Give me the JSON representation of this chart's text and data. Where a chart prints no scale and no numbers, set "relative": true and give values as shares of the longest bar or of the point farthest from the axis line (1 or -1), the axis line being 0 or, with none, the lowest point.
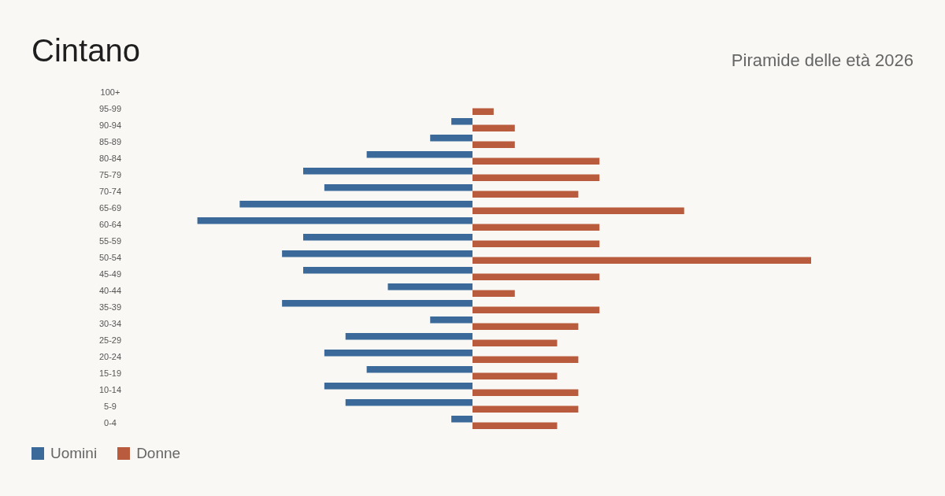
{
  "chart_data": {
    "type": "bar",
    "orientation": "horizontal",
    "relative": true,
    "title": "Cintano",
    "subtitle": "Piramide delle età 2026",
    "categories": [
      "100+",
      "95-99",
      "90-94",
      "85-89",
      "80-84",
      "75-79",
      "70-74",
      "65-69",
      "60-64",
      "55-59",
      "50-54",
      "45-49",
      "40-44",
      "35-39",
      "30-34",
      "25-29",
      "20-24",
      "15-19",
      "10-14",
      "5-9",
      "0-4"
    ],
    "series": [
      {
        "name": "Uomini",
        "color": "#3b6a9a",
        "values": [
          0,
          0,
          -0.0625,
          -0.125,
          -0.3125,
          -0.5,
          -0.4375,
          -0.6875,
          -0.8125,
          -0.5,
          -0.5625,
          -0.5,
          -0.25,
          -0.5625,
          -0.125,
          -0.375,
          -0.4375,
          -0.3125,
          -0.4375,
          -0.375,
          -0.0625
        ]
      },
      {
        "name": "Donne",
        "color": "#b95c3d",
        "values": [
          0,
          0.0625,
          0.125,
          0.125,
          0.375,
          0.375,
          0.3125,
          0.625,
          0.375,
          0.375,
          1,
          0.375,
          0.125,
          0.375,
          0.3125,
          0.25,
          0.3125,
          0.25,
          0.3125,
          0.3125,
          0.25
        ]
      }
    ],
    "legend": "bottom left"
  }
}
